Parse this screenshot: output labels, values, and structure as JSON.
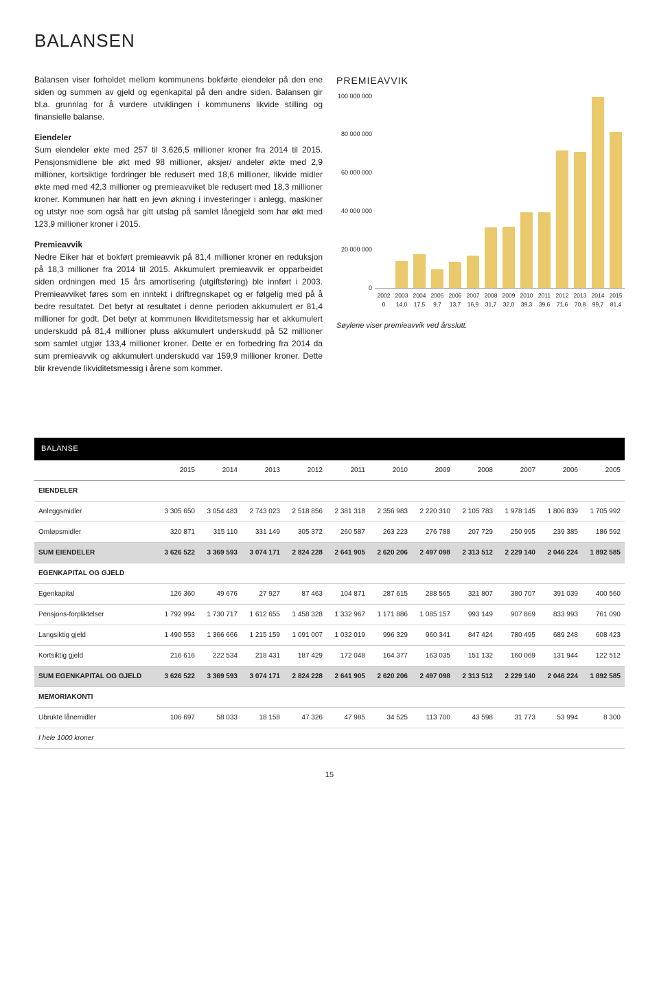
{
  "page": {
    "title": "BALANSEN",
    "pagenum": "15"
  },
  "body": {
    "intro": "Balansen viser forholdet mellom kommunens bokførte eiendeler på den ene siden og summen av gjeld og egenkapital på den andre siden. Balansen gir bl.a. grunnlag for å vurdere utviklingen i kommunens likvide stilling og finansielle balanse.",
    "eiendeler_head": "Eiendeler",
    "eiendeler_text": "Sum eiendeler økte med 257 til 3.626,5 millioner kroner fra 2014 til 2015. Pensjonsmidlene ble økt med 98 millioner, aksjer/ andeler økte med 2,9 millioner, kortsiktige fordringer ble redusert med 18,6 millioner, likvide midler økte med med 42,3 millioner og premieavviket ble redusert med 18,3 millioner kroner. Kommunen har hatt en jevn økning i investeringer i anlegg, maskiner og utstyr noe som også har gitt utslag på samlet lånegjeld som har økt med 123,9 millioner kroner i 2015.",
    "premieavvik_head": "Premieavvik",
    "premieavvik_text": "Nedre Eiker har et bokført premieavvik på 81,4 millioner kroner en reduksjon på 18,3 millioner fra 2014 til 2015. Akkumulert premieavvik er opparbeidet siden ordningen med 15 års amortisering (utgiftsføring) ble innført i 2003. Premieavviket føres som en inntekt i driftregnskapet og er følgelig med på å bedre resultatet. Det betyr at resultatet i denne perioden akkumulert er 81,4 millioner for godt. Det betyr at kommunen likviditetsmessig har et akkumulert underskudd på 81,4 millioner pluss akkumulert underskudd på 52 millioner som samlet utgjør 133,4 millioner kroner. Dette er en forbedring fra 2014 da sum premieavvik og akkumulert underskudd var 159,9 millioner kroner. Dette blir krevende likviditetsmessig i årene som kommer."
  },
  "chart": {
    "title": "PREMIEAVVIK",
    "type": "bar",
    "bar_color": "#e9c96b",
    "background_color": "#ffffff",
    "ylim": [
      0,
      100000000
    ],
    "yticks": [
      "100 000 000",
      "80 000 000",
      "60 000 000",
      "40 000 000",
      "20 000 000",
      "0"
    ],
    "ytick_values": [
      100000000,
      80000000,
      60000000,
      40000000,
      20000000,
      0
    ],
    "years": [
      "2002",
      "2003",
      "2004",
      "2005",
      "2006",
      "2007",
      "2008",
      "2009",
      "2010",
      "2011",
      "2012",
      "2013",
      "2014",
      "2015"
    ],
    "values_label": [
      "0",
      "14,0",
      "17,5",
      "9,7",
      "13,7",
      "16,9",
      "31,7",
      "32,0",
      "39,3",
      "39,6",
      "71,6",
      "70,8",
      "99,7",
      "81,4"
    ],
    "values_m": [
      0,
      14.0,
      17.5,
      9.7,
      13.7,
      16.9,
      31.7,
      32.0,
      39.3,
      39.6,
      71.6,
      70.8,
      99.7,
      81.4
    ],
    "caption": "Søylene viser premieavvik ved årsslutt."
  },
  "balance_table": {
    "header": "BALANSE",
    "columns": [
      "",
      "2015",
      "2014",
      "2013",
      "2012",
      "2011",
      "2010",
      "2009",
      "2008",
      "2007",
      "2006",
      "2005"
    ],
    "section_eiendeler": "EIENDELER",
    "rows_eiendeler": [
      [
        "Anleggsmidler",
        "3 305 650",
        "3 054 483",
        "2 743 023",
        "2 518 856",
        "2 381 318",
        "2 356 983",
        "2 220 310",
        "2 105 783",
        "1 978 145",
        "1 806 839",
        "1 705 992"
      ],
      [
        "Omløpsmidler",
        "320 871",
        "315 110",
        "331 149",
        "305 372",
        "260 587",
        "263 223",
        "276 788",
        "207 729",
        "250 995",
        "239 385",
        "186 592"
      ]
    ],
    "sum_eiendeler": [
      "SUM EIENDELER",
      "3 626 522",
      "3 369 593",
      "3 074 171",
      "2 824 228",
      "2 641 905",
      "2 620 206",
      "2 497 098",
      "2 313 512",
      "2 229 140",
      "2 046 224",
      "1 892 585"
    ],
    "section_egenkapital": "EGENKAPITAL OG GJELD",
    "rows_egenkapital": [
      [
        "Egenkapital",
        "126 360",
        "49 676",
        "27 927",
        "87 463",
        "104 871",
        "287 615",
        "288 565",
        "321 807",
        "380 707",
        "391 039",
        "400 560"
      ],
      [
        "Pensjons-forpliktelser",
        "1 792 994",
        "1 730 717",
        "1 612 655",
        "1 458 328",
        "1 332 967",
        "1 171 886",
        "1 085 157",
        "993 149",
        "907 869",
        "833 993",
        "761 090"
      ],
      [
        "Langsiktig gjeld",
        "1 490 553",
        "1 366 666",
        "1 215 159",
        "1 091 007",
        "1 032 019",
        "996 329",
        "960 341",
        "847 424",
        "780 495",
        "689 248",
        "608 423"
      ],
      [
        "Kortsiktig gjeld",
        "216 616",
        "222 534",
        "218 431",
        "187 429",
        "172 048",
        "164 377",
        "163 035",
        "151 132",
        "160 069",
        "131 944",
        "122 512"
      ]
    ],
    "sum_egenkapital": [
      "SUM EGENKAPITAL OG GJELD",
      "3 626 522",
      "3 369 593",
      "3 074 171",
      "2 824 228",
      "2 641 905",
      "2 620 206",
      "2 497 098",
      "2 313 512",
      "2 229 140",
      "2 046 224",
      "1 892 585"
    ],
    "section_memoriakonti": "MEMORIAKONTI",
    "rows_memoriakonti": [
      [
        "Ubrukte lånemidler",
        "106 697",
        "58 033",
        "18 158",
        "47 326",
        "47 985",
        "34 525",
        "113 700",
        "43 598",
        "31 773",
        "53 994",
        "8 300"
      ]
    ],
    "footnote": "I hele 1000 kroner"
  }
}
